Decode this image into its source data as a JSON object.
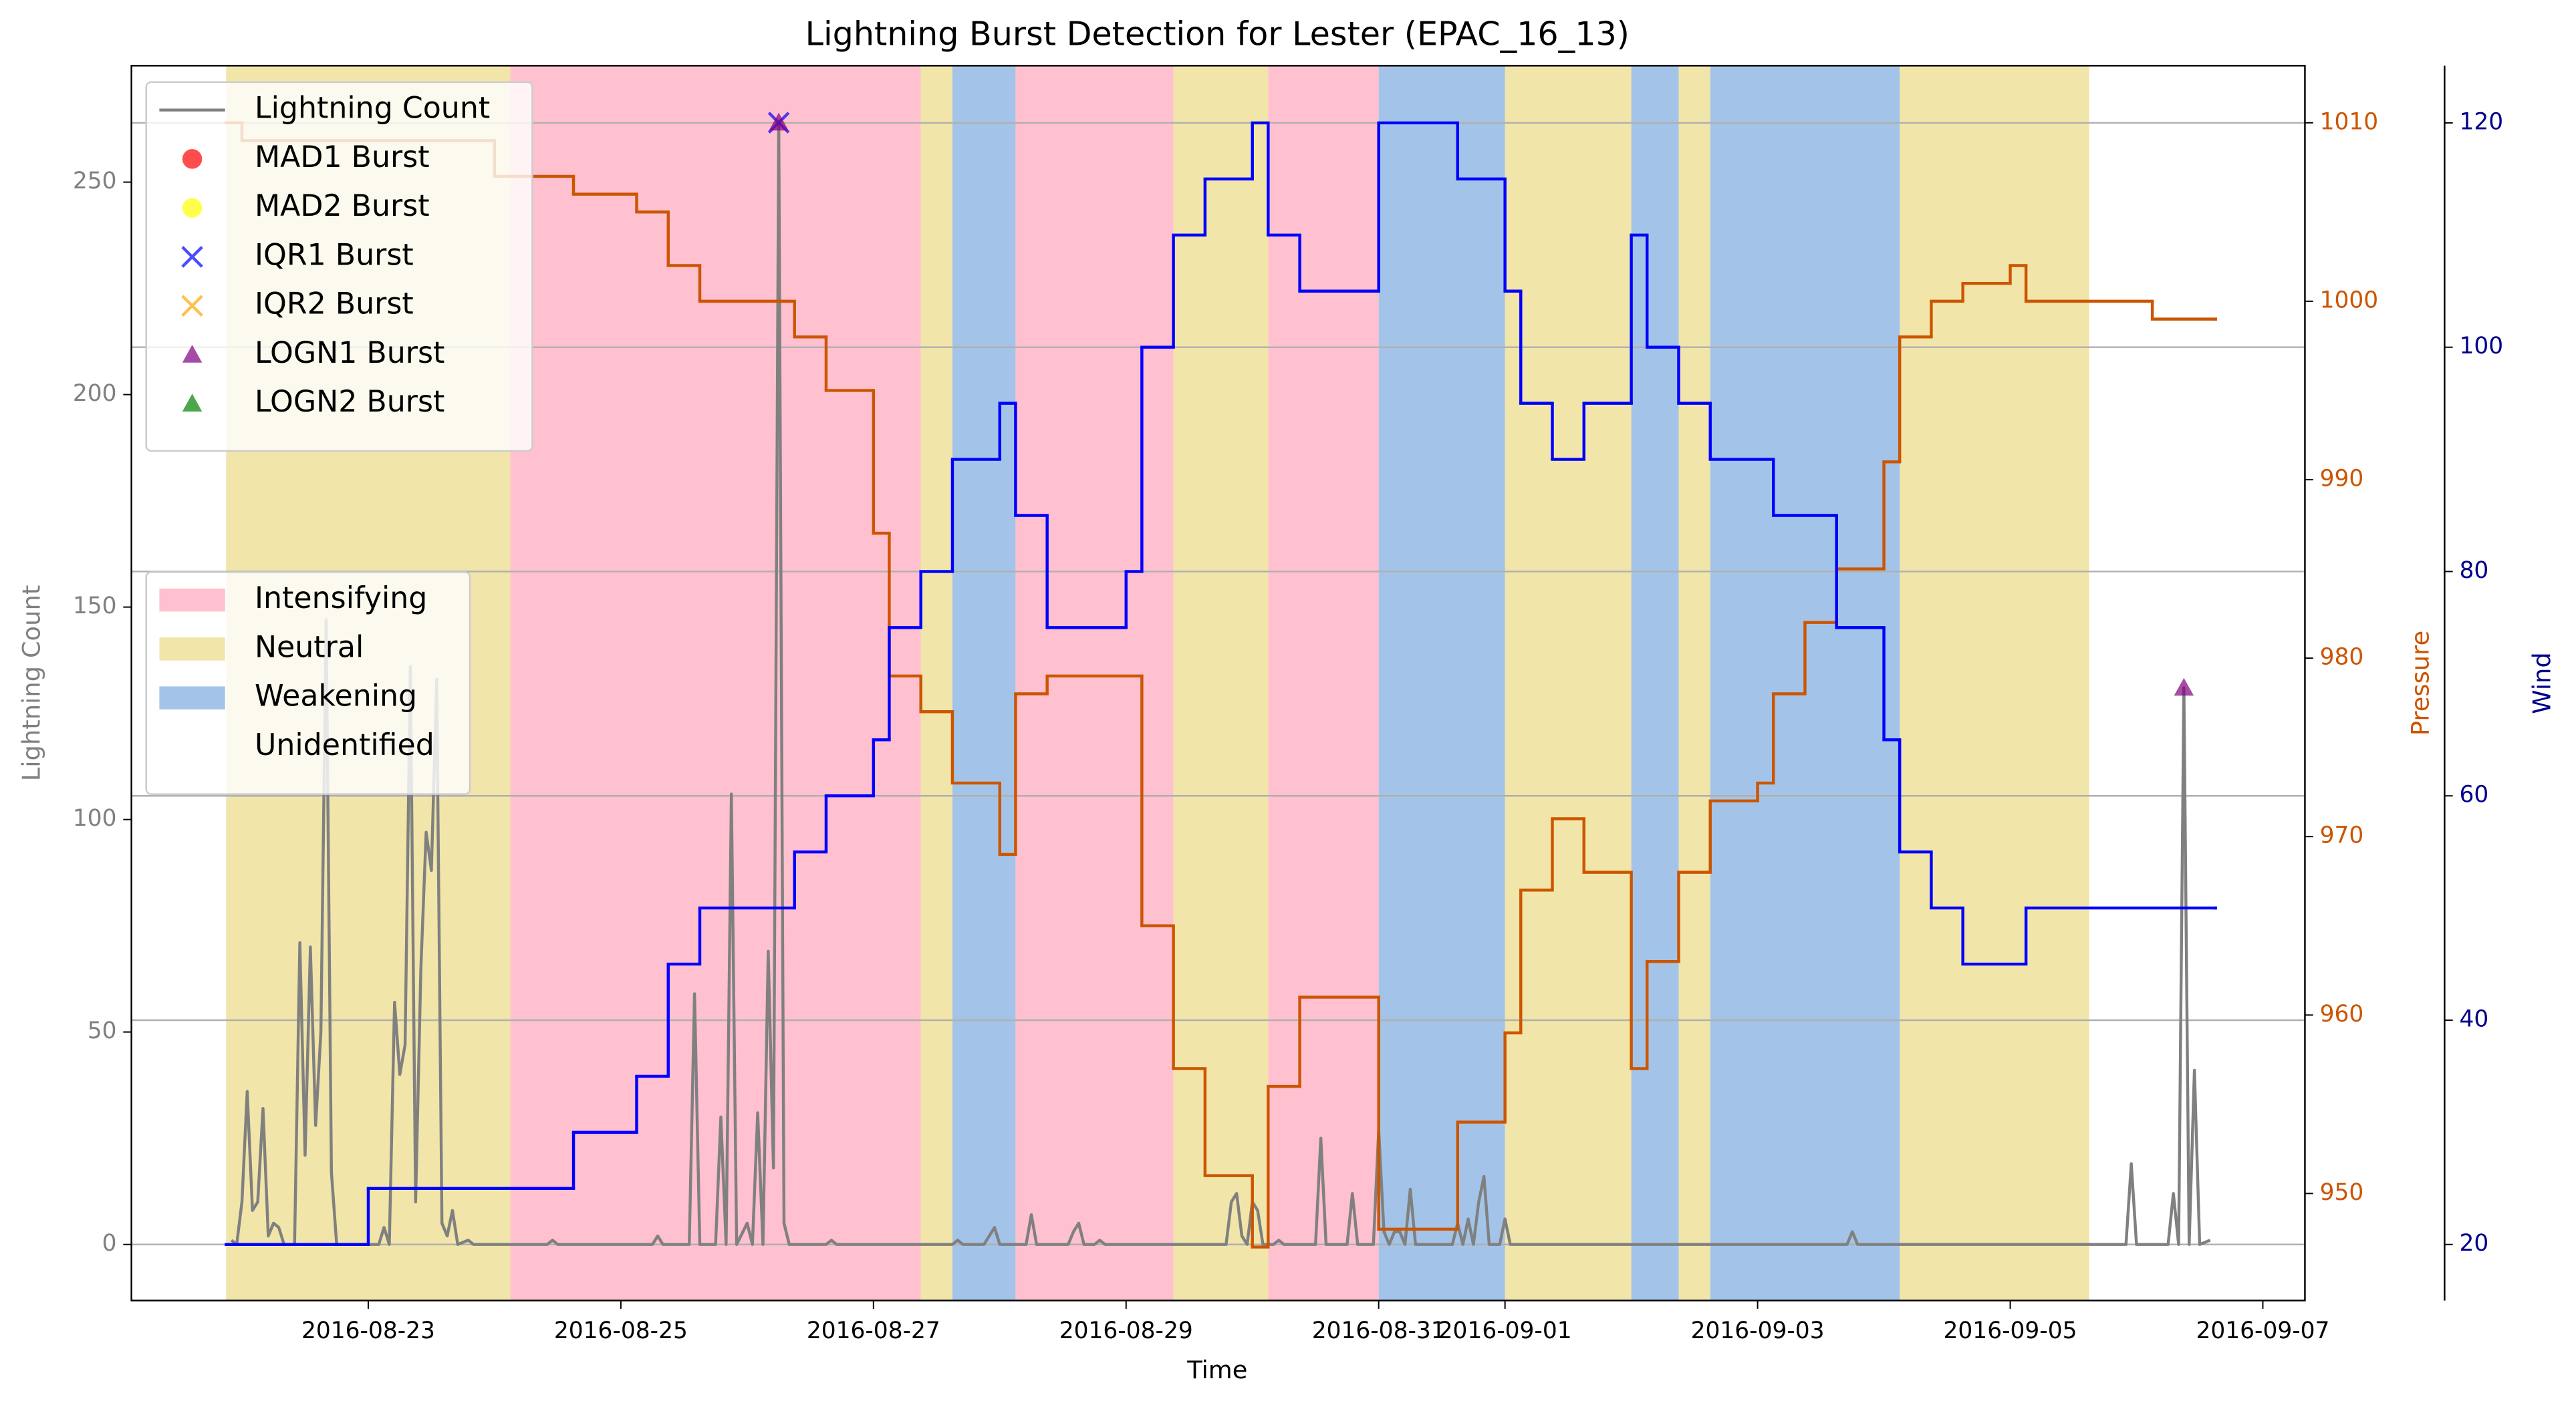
{
  "chart_data": {
    "type": "line",
    "title": "Lightning Burst Detection for Lester (EPAC_16_13)",
    "x_label": "Time",
    "y_label": "Lightning Count",
    "y2_label": "Pressure",
    "y3_label": "Wind",
    "y_color": "#808080",
    "y2_color": "#cc5500",
    "y3_color": "#00008b",
    "xlim": [
      "2016-08-21 03:00",
      "2016-09-07 08:00"
    ],
    "xticks": [
      "2016-08-23",
      "2016-08-25",
      "2016-08-27",
      "2016-08-29",
      "2016-08-31",
      "2016-09-01",
      "2016-09-03",
      "2016-09-05",
      "2016-09-07"
    ],
    "ylim": [
      -13.2,
      277.4
    ],
    "yticks": [
      0,
      50,
      100,
      150,
      200,
      250
    ],
    "y2lim": [
      944.0,
      1013.2
    ],
    "y2ticks": [
      950,
      960,
      970,
      980,
      990,
      1000,
      1010
    ],
    "y3lim": [
      15.0,
      125.1
    ],
    "y3ticks": [
      20,
      40,
      60,
      80,
      100,
      120
    ],
    "grid": "y3",
    "legend": "upper left",
    "phase_legend": "center left",
    "series": [
      {
        "name": "Lightning Count",
        "color": "#808080",
        "axis": "y",
        "x": [
          "2016-08-21 22:00",
          "2016-08-21 23:00",
          "2016-08-22 00:00",
          "2016-08-22 01:00",
          "2016-08-22 02:00",
          "2016-08-22 03:00",
          "2016-08-22 04:00",
          "2016-08-22 05:00",
          "2016-08-22 06:00",
          "2016-08-22 07:00",
          "2016-08-22 08:00",
          "2016-08-22 10:00",
          "2016-08-22 11:00",
          "2016-08-22 12:00",
          "2016-08-22 13:00",
          "2016-08-22 14:00",
          "2016-08-22 15:00",
          "2016-08-22 16:00",
          "2016-08-22 17:00",
          "2016-08-22 18:00",
          "2016-08-23 02:00",
          "2016-08-23 03:00",
          "2016-08-23 04:00",
          "2016-08-23 05:00",
          "2016-08-23 06:00",
          "2016-08-23 07:00",
          "2016-08-23 08:00",
          "2016-08-23 09:00",
          "2016-08-23 10:00",
          "2016-08-23 11:00",
          "2016-08-23 12:00",
          "2016-08-23 13:00",
          "2016-08-23 14:00",
          "2016-08-23 15:00",
          "2016-08-23 16:00",
          "2016-08-23 17:00",
          "2016-08-23 19:00",
          "2016-08-23 20:00",
          "2016-08-24 10:00",
          "2016-08-24 11:00",
          "2016-08-24 12:00",
          "2016-08-25 06:00",
          "2016-08-25 07:00",
          "2016-08-25 08:00",
          "2016-08-25 13:00",
          "2016-08-25 14:00",
          "2016-08-25 15:00",
          "2016-08-25 18:00",
          "2016-08-25 19:00",
          "2016-08-25 20:00",
          "2016-08-25 21:00",
          "2016-08-25 22:00",
          "2016-08-26 00:00",
          "2016-08-26 01:00",
          "2016-08-26 02:00",
          "2016-08-26 03:00",
          "2016-08-26 04:00",
          "2016-08-26 05:00",
          "2016-08-26 06:00",
          "2016-08-26 07:00",
          "2016-08-26 08:00",
          "2016-08-26 15:00",
          "2016-08-26 16:00",
          "2016-08-26 17:00",
          "2016-08-27 15:00",
          "2016-08-27 16:00",
          "2016-08-27 17:00",
          "2016-08-27 21:00",
          "2016-08-27 22:00",
          "2016-08-27 23:00",
          "2016-08-28 00:00",
          "2016-08-28 05:00",
          "2016-08-28 06:00",
          "2016-08-28 07:00",
          "2016-08-28 13:00",
          "2016-08-28 14:00",
          "2016-08-28 15:00",
          "2016-08-28 16:00",
          "2016-08-28 18:00",
          "2016-08-28 19:00",
          "2016-08-28 20:00",
          "2016-08-29 19:00",
          "2016-08-29 20:00",
          "2016-08-29 21:00",
          "2016-08-29 22:00",
          "2016-08-29 23:00",
          "2016-08-30 00:00",
          "2016-08-30 01:00",
          "2016-08-30 02:00",
          "2016-08-30 04:00",
          "2016-08-30 05:00",
          "2016-08-30 06:00",
          "2016-08-30 12:00",
          "2016-08-30 13:00",
          "2016-08-30 14:00",
          "2016-08-30 18:00",
          "2016-08-30 19:00",
          "2016-08-30 20:00",
          "2016-08-30 23:00",
          "2016-08-31 00:00",
          "2016-08-31 01:00",
          "2016-08-31 02:00",
          "2016-08-31 03:00",
          "2016-08-31 04:00",
          "2016-08-31 05:00",
          "2016-08-31 06:00",
          "2016-08-31 07:00",
          "2016-08-31 14:00",
          "2016-08-31 15:00",
          "2016-08-31 16:00",
          "2016-08-31 17:00",
          "2016-08-31 18:00",
          "2016-08-31 19:00",
          "2016-08-31 20:00",
          "2016-08-31 21:00",
          "2016-08-31 23:00",
          "2016-09-01 00:00",
          "2016-09-01 01:00",
          "2016-09-03 17:00",
          "2016-09-03 18:00",
          "2016-09-03 19:00",
          "2016-09-05 22:00",
          "2016-09-05 23:00",
          "2016-09-06 00:00",
          "2016-09-06 06:00",
          "2016-09-06 07:00",
          "2016-09-06 08:00",
          "2016-09-06 09:00",
          "2016-09-06 10:00",
          "2016-09-06 11:00",
          "2016-09-06 12:00",
          "2016-09-06 14:00"
        ],
        "values": [
          1,
          0,
          10,
          36,
          8,
          10,
          32,
          2,
          5,
          4,
          0,
          0,
          71,
          21,
          70,
          28,
          50,
          147,
          17,
          0,
          0,
          4,
          0,
          57,
          40,
          47,
          136,
          10,
          65,
          97,
          88,
          133,
          5,
          2,
          8,
          0,
          1,
          0,
          0,
          1,
          0,
          0,
          2,
          0,
          0,
          59,
          0,
          0,
          30,
          0,
          106,
          0,
          5,
          0,
          31,
          0,
          69,
          18,
          264,
          5,
          0,
          0,
          1,
          0,
          0,
          1,
          0,
          0,
          2,
          4,
          0,
          0,
          7,
          0,
          0,
          3,
          5,
          0,
          0,
          1,
          0,
          0,
          10,
          12,
          2,
          0,
          10,
          8,
          0,
          0,
          1,
          0,
          0,
          25,
          0,
          0,
          12,
          0,
          0,
          27,
          3,
          0,
          3,
          3,
          0,
          13,
          0,
          0,
          5,
          0,
          6,
          0,
          10,
          16,
          0,
          0,
          6,
          0,
          0,
          3,
          0,
          0,
          19,
          0,
          0,
          12,
          0,
          131,
          0,
          41,
          0,
          1
        ]
      },
      {
        "color": "#cc5500",
        "axis": "y2",
        "drawstyle": "steps-post",
        "x": [
          "2016-08-21 21:00",
          "2016-08-22 00:00",
          "2016-08-24 00:00",
          "2016-08-24 15:00",
          "2016-08-25 03:00",
          "2016-08-25 09:00",
          "2016-08-25 15:00",
          "2016-08-26 09:00",
          "2016-08-26 15:00",
          "2016-08-27 00:00",
          "2016-08-27 03:00",
          "2016-08-27 09:00",
          "2016-08-27 15:00",
          "2016-08-28 00:00",
          "2016-08-28 03:00",
          "2016-08-28 09:00",
          "2016-08-29 03:00",
          "2016-08-29 09:00",
          "2016-08-29 15:00",
          "2016-08-30 00:00",
          "2016-08-30 03:00",
          "2016-08-30 09:00",
          "2016-08-31 00:00",
          "2016-08-31 15:00",
          "2016-09-01 00:00",
          "2016-09-01 03:00",
          "2016-09-01 09:00",
          "2016-09-01 15:00",
          "2016-09-02 00:00",
          "2016-09-02 03:00",
          "2016-09-02 09:00",
          "2016-09-02 15:00",
          "2016-09-03 00:00",
          "2016-09-03 03:00",
          "2016-09-03 09:00",
          "2016-09-03 15:00",
          "2016-09-04 00:00",
          "2016-09-04 03:00",
          "2016-09-04 09:00",
          "2016-09-04 15:00",
          "2016-09-05 00:00",
          "2016-09-05 03:00",
          "2016-09-06 03:00",
          "2016-09-06 15:00"
        ],
        "values": [
          1010,
          1009,
          1007,
          1006,
          1005,
          1002,
          1000,
          998,
          995,
          987,
          979,
          977,
          973,
          969,
          978,
          979,
          965,
          957,
          951,
          947,
          956,
          961,
          948,
          954,
          959,
          967,
          971,
          968,
          957,
          963,
          968,
          972,
          973,
          978,
          982,
          985,
          991,
          998,
          1000,
          1001,
          1002,
          1000,
          999,
          999
        ]
      },
      {
        "color": "#0000ff",
        "axis": "y3",
        "drawstyle": "steps-post",
        "x": [
          "2016-08-21 21:00",
          "2016-08-23 00:00",
          "2016-08-24 15:00",
          "2016-08-25 03:00",
          "2016-08-25 09:00",
          "2016-08-25 15:00",
          "2016-08-26 09:00",
          "2016-08-26 15:00",
          "2016-08-27 00:00",
          "2016-08-27 03:00",
          "2016-08-27 09:00",
          "2016-08-27 15:00",
          "2016-08-28 00:00",
          "2016-08-28 03:00",
          "2016-08-28 09:00",
          "2016-08-29 00:00",
          "2016-08-29 03:00",
          "2016-08-29 09:00",
          "2016-08-29 15:00",
          "2016-08-30 00:00",
          "2016-08-30 03:00",
          "2016-08-30 09:00",
          "2016-08-31 00:00",
          "2016-08-31 15:00",
          "2016-09-01 00:00",
          "2016-09-01 03:00",
          "2016-09-01 09:00",
          "2016-09-01 15:00",
          "2016-09-02 00:00",
          "2016-09-02 03:00",
          "2016-09-02 09:00",
          "2016-09-02 15:00",
          "2016-09-03 03:00",
          "2016-09-03 15:00",
          "2016-09-04 00:00",
          "2016-09-04 03:00",
          "2016-09-04 09:00",
          "2016-09-04 15:00",
          "2016-09-05 03:00",
          "2016-09-06 15:00"
        ],
        "values": [
          20,
          25,
          30,
          35,
          45,
          50,
          55,
          60,
          65,
          75,
          80,
          90,
          95,
          85,
          75,
          80,
          100,
          110,
          115,
          120,
          110,
          105,
          120,
          115,
          105,
          95,
          90,
          95,
          110,
          100,
          95,
          90,
          85,
          75,
          65,
          55,
          50,
          45,
          50,
          50
        ]
      }
    ],
    "markers": [
      {
        "name": "MAD1 Burst",
        "color": "#ff0000",
        "marker": "o",
        "x": [],
        "values": []
      },
      {
        "name": "MAD2 Burst",
        "color": "#ffff00",
        "marker": "o",
        "x": [],
        "values": []
      },
      {
        "name": "IQR1 Burst",
        "color": "#0000ff",
        "marker": "x",
        "x": [
          "2016-08-26 06:00"
        ],
        "values": [
          264
        ]
      },
      {
        "name": "IQR2 Burst",
        "color": "#ffa500",
        "marker": "x",
        "x": [],
        "values": []
      },
      {
        "name": "LOGN1 Burst",
        "color": "#800080",
        "marker": "^",
        "x": [
          "2016-08-26 06:00",
          "2016-09-06 09:00"
        ],
        "values": [
          264,
          131
        ]
      },
      {
        "name": "LOGN2 Burst",
        "color": "#008000",
        "marker": "^",
        "x": [],
        "values": []
      }
    ],
    "phases": [
      {
        "name": "Intensifying",
        "color": "#ffc0cf",
        "spans": [
          [
            "2016-08-24 03:00",
            "2016-08-27 09:00"
          ],
          [
            "2016-08-28 03:00",
            "2016-08-29 09:00"
          ],
          [
            "2016-08-30 03:00",
            "2016-08-31 00:00"
          ]
        ]
      },
      {
        "name": "Neutral",
        "color": "#f1e5a9",
        "spans": [
          [
            "2016-08-21 21:00",
            "2016-08-24 03:00"
          ],
          [
            "2016-08-27 09:00",
            "2016-08-27 15:00"
          ],
          [
            "2016-08-29 09:00",
            "2016-08-30 03:00"
          ],
          [
            "2016-09-01 00:00",
            "2016-09-02 00:00"
          ],
          [
            "2016-09-02 09:00",
            "2016-09-02 15:00"
          ],
          [
            "2016-09-04 03:00",
            "2016-09-05 15:00"
          ]
        ]
      },
      {
        "name": "Weakening",
        "color": "#a3c4e8",
        "spans": [
          [
            "2016-08-27 15:00",
            "2016-08-28 03:00"
          ],
          [
            "2016-08-31 00:00",
            "2016-09-01 00:00"
          ],
          [
            "2016-09-02 00:00",
            "2016-09-02 09:00"
          ],
          [
            "2016-09-02 15:00",
            "2016-09-04 03:00"
          ]
        ]
      },
      {
        "name": "Unidentified",
        "color": "#ffffff",
        "spans": []
      }
    ]
  }
}
